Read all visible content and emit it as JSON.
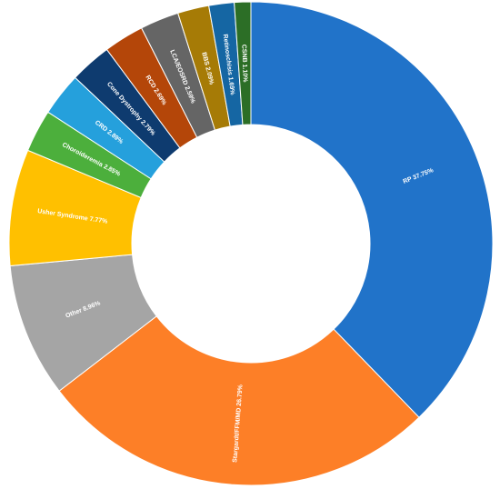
{
  "chart_data": {
    "type": "donut",
    "categories": [
      "RP",
      "Stargardt/FFM/MD",
      "Other",
      "Usher Syndrome",
      "Choroideremia",
      "CRD",
      "Cone Dystrophy",
      "RCD",
      "LCA/EOSRD",
      "BBS",
      "Retinoschisis",
      "CSNB"
    ],
    "values": [
      37.75,
      26.79,
      8.96,
      7.77,
      2.85,
      2.89,
      2.79,
      2.69,
      2.59,
      2.09,
      1.69,
      1.1
    ],
    "value_labels": [
      "37.75%",
      "26.79%",
      "8.96%",
      "7.77%",
      "2.85%",
      "2.89%",
      "2.79%",
      "2.69%",
      "2.59%",
      "2.09%",
      "1.69%",
      "1.10%"
    ],
    "colors": [
      "#2173c9",
      "#fd7f27",
      "#a5a5a5",
      "#ffc000",
      "#4caf3c",
      "#25a0dc",
      "#0e3b6f",
      "#b44609",
      "#656565",
      "#a67b06",
      "#1566a3",
      "#2c6e26"
    ]
  }
}
